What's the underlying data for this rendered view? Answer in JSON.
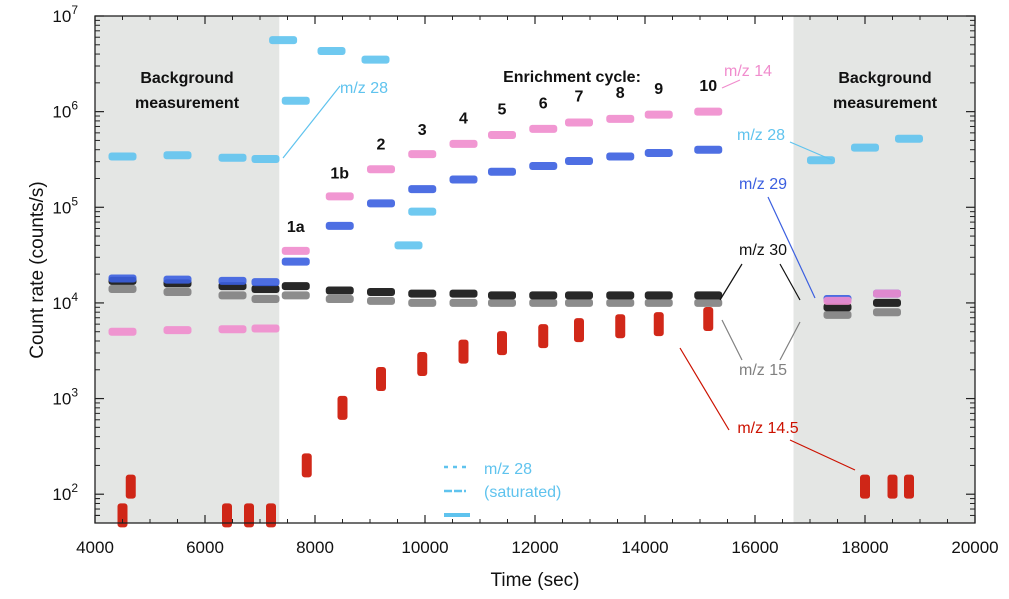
{
  "chart_data": {
    "type": "scatter",
    "title": "",
    "xlabel": "Time (sec)",
    "ylabel": "Count rate (counts/s)",
    "xlim": [
      4000,
      20000
    ],
    "ylim": [
      50,
      10000000
    ],
    "yscale": "log",
    "grid": false,
    "x_ticks": [
      "4000",
      "6000",
      "8000",
      "10000",
      "12000",
      "14000",
      "16000",
      "18000",
      "20000"
    ],
    "y_ticks": [
      {
        "value": 100,
        "mantissa": "10",
        "exp": "2"
      },
      {
        "value": 1000,
        "mantissa": "10",
        "exp": "3"
      },
      {
        "value": 10000,
        "mantissa": "10",
        "exp": "4"
      },
      {
        "value": 100000,
        "mantissa": "10",
        "exp": "5"
      },
      {
        "value": 1000000,
        "mantissa": "10",
        "exp": "6"
      },
      {
        "value": 10000000,
        "mantissa": "10",
        "exp": "7"
      }
    ],
    "shaded_regions": [
      [
        4000,
        7350
      ],
      [
        16700,
        20000
      ]
    ],
    "colors": {
      "mz14": "#f08ccd",
      "mz28": "#5fc3ee",
      "mz29": "#3b5fe0",
      "mz30": "#111111",
      "mz15": "#808080",
      "mz14_5": "#cc1100",
      "shade": "#e4e6e4"
    },
    "series": [
      {
        "name": "m/z 14",
        "key": "mz14",
        "points": [
          [
            4500,
            5000
          ],
          [
            5500,
            5200
          ],
          [
            6500,
            5300
          ],
          [
            7100,
            5400
          ],
          [
            7650,
            35000
          ],
          [
            8450,
            130000
          ],
          [
            9200,
            250000
          ],
          [
            9950,
            360000
          ],
          [
            10700,
            460000
          ],
          [
            11400,
            570000
          ],
          [
            12150,
            660000
          ],
          [
            12800,
            770000
          ],
          [
            13550,
            840000
          ],
          [
            14250,
            930000
          ],
          [
            15150,
            1000000
          ],
          [
            17500,
            10500
          ],
          [
            18400,
            12500
          ]
        ]
      },
      {
        "name": "m/z 28",
        "key": "mz28",
        "points": [
          [
            4500,
            340000
          ],
          [
            5500,
            350000
          ],
          [
            6500,
            330000
          ],
          [
            7100,
            320000
          ],
          [
            7420,
            5600000
          ],
          [
            7650,
            1300000
          ],
          [
            8300,
            4300000
          ],
          [
            9100,
            3500000
          ],
          [
            9700,
            40000
          ],
          [
            9950,
            90000
          ],
          [
            17200,
            310000
          ],
          [
            18000,
            420000
          ],
          [
            18800,
            520000
          ]
        ]
      },
      {
        "name": "m/z 29",
        "key": "mz29",
        "points": [
          [
            4500,
            18000
          ],
          [
            5500,
            17500
          ],
          [
            6500,
            17000
          ],
          [
            7100,
            16500
          ],
          [
            7650,
            27000
          ],
          [
            8450,
            64000
          ],
          [
            9200,
            110000
          ],
          [
            9950,
            155000
          ],
          [
            10700,
            195000
          ],
          [
            11400,
            235000
          ],
          [
            12150,
            270000
          ],
          [
            12800,
            305000
          ],
          [
            13550,
            340000
          ],
          [
            14250,
            370000
          ],
          [
            15150,
            400000
          ],
          [
            17500,
            11000
          ],
          [
            18400,
            12500
          ]
        ]
      },
      {
        "name": "m/z 30",
        "key": "mz30",
        "points": [
          [
            4500,
            17000
          ],
          [
            5500,
            16000
          ],
          [
            6500,
            15000
          ],
          [
            7100,
            14000
          ],
          [
            7650,
            15000
          ],
          [
            8450,
            13500
          ],
          [
            9200,
            13000
          ],
          [
            9950,
            12500
          ],
          [
            10700,
            12500
          ],
          [
            11400,
            12000
          ],
          [
            12150,
            12000
          ],
          [
            12800,
            12000
          ],
          [
            13550,
            12000
          ],
          [
            14250,
            12000
          ],
          [
            15150,
            12000
          ],
          [
            17500,
            9000
          ],
          [
            18400,
            10000
          ]
        ]
      },
      {
        "name": "m/z 15",
        "key": "mz15",
        "points": [
          [
            4500,
            14000
          ],
          [
            5500,
            13000
          ],
          [
            6500,
            12000
          ],
          [
            7100,
            11000
          ],
          [
            7650,
            12000
          ],
          [
            8450,
            11000
          ],
          [
            9200,
            10500
          ],
          [
            9950,
            10000
          ],
          [
            10700,
            10000
          ],
          [
            11400,
            10000
          ],
          [
            12150,
            10000
          ],
          [
            12800,
            10000
          ],
          [
            13550,
            10000
          ],
          [
            14250,
            10000
          ],
          [
            15150,
            10000
          ],
          [
            17500,
            7500
          ],
          [
            18400,
            8000
          ]
        ]
      },
      {
        "name": "m/z 14.5",
        "key": "mz14_5",
        "points": [
          [
            4500,
            60
          ],
          [
            4650,
            120
          ],
          [
            6400,
            60
          ],
          [
            6800,
            60
          ],
          [
            7200,
            60
          ],
          [
            7850,
            200
          ],
          [
            8500,
            800
          ],
          [
            9200,
            1600
          ],
          [
            9950,
            2300
          ],
          [
            10700,
            3100
          ],
          [
            11400,
            3800
          ],
          [
            12150,
            4500
          ],
          [
            12800,
            5200
          ],
          [
            13550,
            5700
          ],
          [
            14250,
            6000
          ],
          [
            15150,
            6800
          ],
          [
            18000,
            120
          ],
          [
            18500,
            120
          ],
          [
            18800,
            120
          ]
        ]
      }
    ],
    "annotations": {
      "bg_left_1": "Background",
      "bg_left_2": "measurement",
      "bg_right_1": "Background",
      "bg_right_2": "measurement",
      "enrichment": "Enrichment cycle:",
      "cycles": [
        {
          "label": "1a",
          "x": 7650,
          "y": 55000
        },
        {
          "label": "1b",
          "x": 8450,
          "y": 200000
        },
        {
          "label": "2",
          "x": 9200,
          "y": 400000
        },
        {
          "label": "3",
          "x": 9950,
          "y": 570000
        },
        {
          "label": "4",
          "x": 10700,
          "y": 750000
        },
        {
          "label": "5",
          "x": 11400,
          "y": 930000
        },
        {
          "label": "6",
          "x": 12150,
          "y": 1080000
        },
        {
          "label": "7",
          "x": 12800,
          "y": 1270000
        },
        {
          "label": "8",
          "x": 13550,
          "y": 1390000
        },
        {
          "label": "9",
          "x": 14250,
          "y": 1520000
        },
        {
          "label": "10",
          "x": 15150,
          "y": 1650000
        }
      ],
      "mz28_inner": "m/z 28",
      "mz14": "m/z 14",
      "mz28": "m/z 28",
      "mz29": "m/z 29",
      "mz30": "m/z 30",
      "mz15": "m/z 15",
      "mz14_5": "m/z 14.5",
      "sat_1": "m/z 28",
      "sat_2": "(saturated)"
    }
  }
}
